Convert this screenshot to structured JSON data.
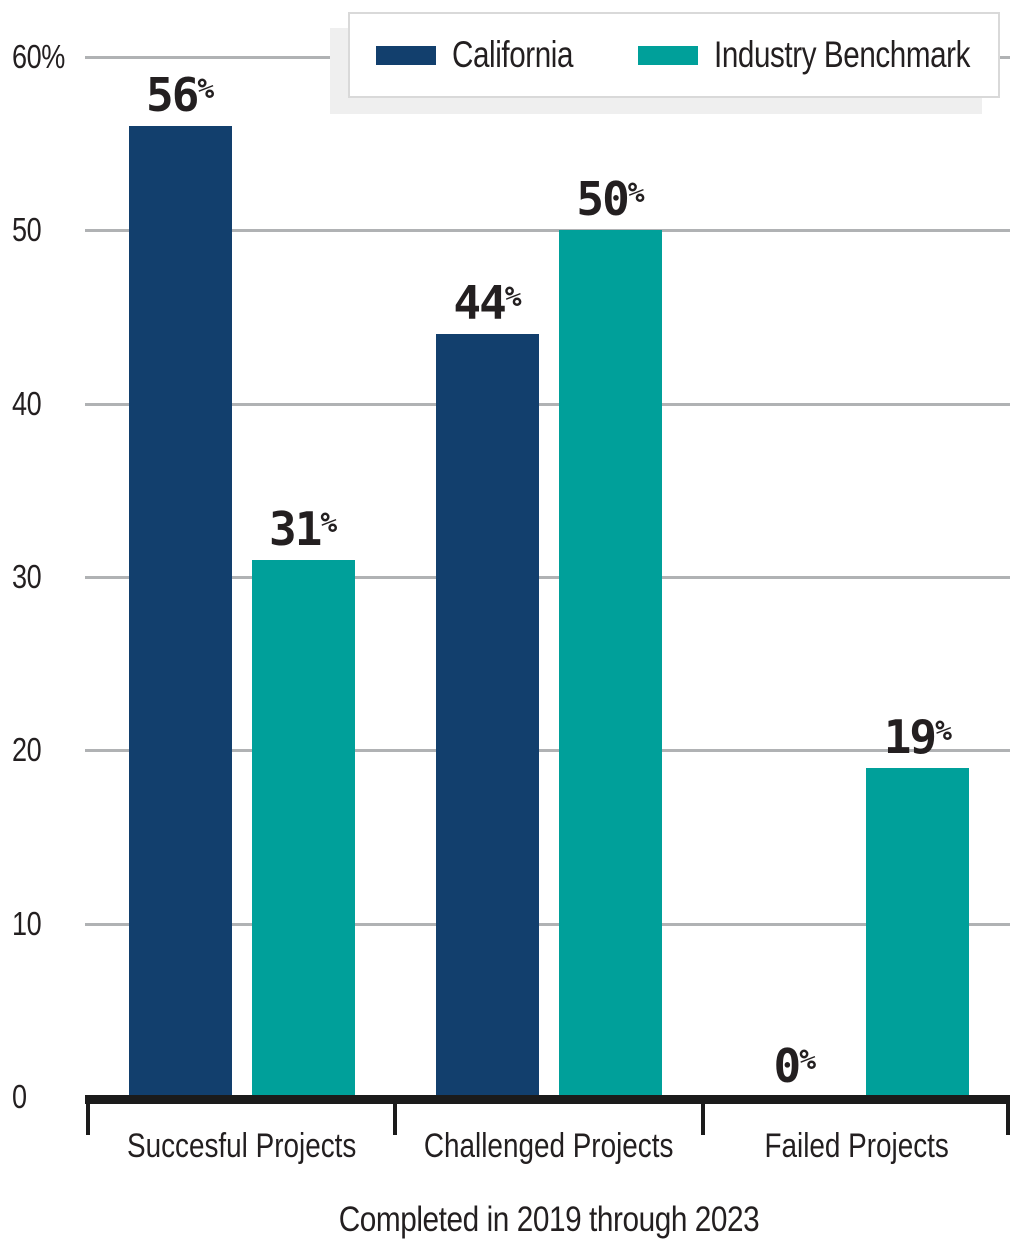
{
  "chart_data": {
    "type": "bar",
    "title": "",
    "xlabel": "Completed in 2019 through 2023",
    "ylabel": "",
    "ylim": [
      0,
      60
    ],
    "grid": true,
    "legend_position": "top-right",
    "value_suffix": "%",
    "yticks": [
      {
        "value": 0,
        "label": "0"
      },
      {
        "value": 10,
        "label": "10"
      },
      {
        "value": 20,
        "label": "20"
      },
      {
        "value": 30,
        "label": "30"
      },
      {
        "value": 40,
        "label": "40"
      },
      {
        "value": 50,
        "label": "50"
      },
      {
        "value": 60,
        "label": "60%"
      }
    ],
    "categories": [
      "Succesful Projects",
      "Challenged Projects",
      "Failed Projects"
    ],
    "series": [
      {
        "name": "California",
        "color": "#123f6d",
        "values": [
          56,
          44,
          0
        ]
      },
      {
        "name": "Industry Benchmark",
        "color": "#00a09a",
        "values": [
          31,
          50,
          19
        ]
      }
    ],
    "data_labels": [
      {
        "series": "California",
        "labels": [
          "56%",
          "44%",
          "0%"
        ]
      },
      {
        "series": "Industry Benchmark",
        "labels": [
          "31%",
          "50%",
          "19%"
        ]
      }
    ]
  },
  "style": {
    "background": "#ffffff",
    "grid_color": "#b0b2b4",
    "axis_color": "#1b1b1b",
    "text_color": "#231f20",
    "legend_border_color": "#d9d9d9",
    "legend_shadow_color": "#efefef"
  }
}
